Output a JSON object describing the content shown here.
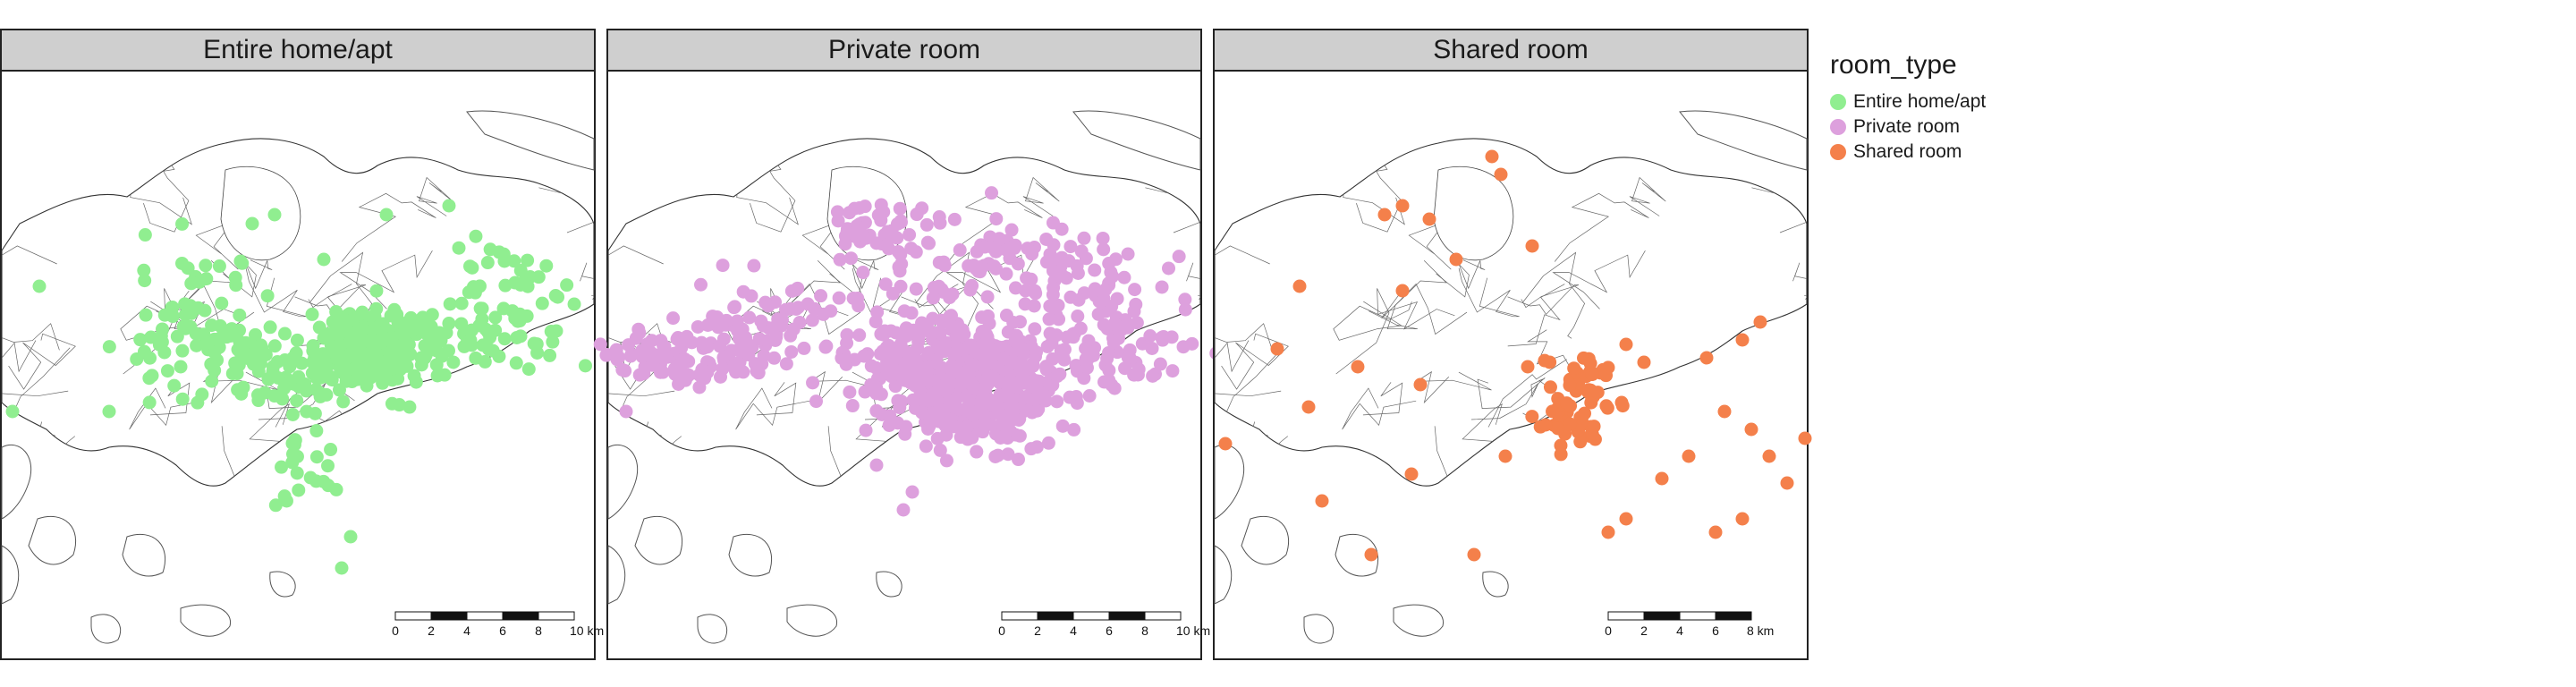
{
  "panels": [
    {
      "title": "Entire home/apt",
      "color": "#90EE90",
      "scale_labels": [
        "0",
        "2",
        "4",
        "6",
        "8",
        "10 km"
      ]
    },
    {
      "title": "Private room",
      "color": "#DDA0DD",
      "scale_labels": [
        "0",
        "2",
        "4",
        "6",
        "8",
        "10 km"
      ]
    },
    {
      "title": "Shared room",
      "color": "#F4804B",
      "scale_labels": [
        "0",
        "2",
        "4",
        "6",
        "8 km"
      ]
    }
  ],
  "legend": {
    "title": "room_type",
    "items": [
      {
        "label": "Entire home/apt",
        "color": "#90EE90"
      },
      {
        "label": "Private room",
        "color": "#DDA0DD"
      },
      {
        "label": "Shared room",
        "color": "#F4804B"
      }
    ]
  }
}
